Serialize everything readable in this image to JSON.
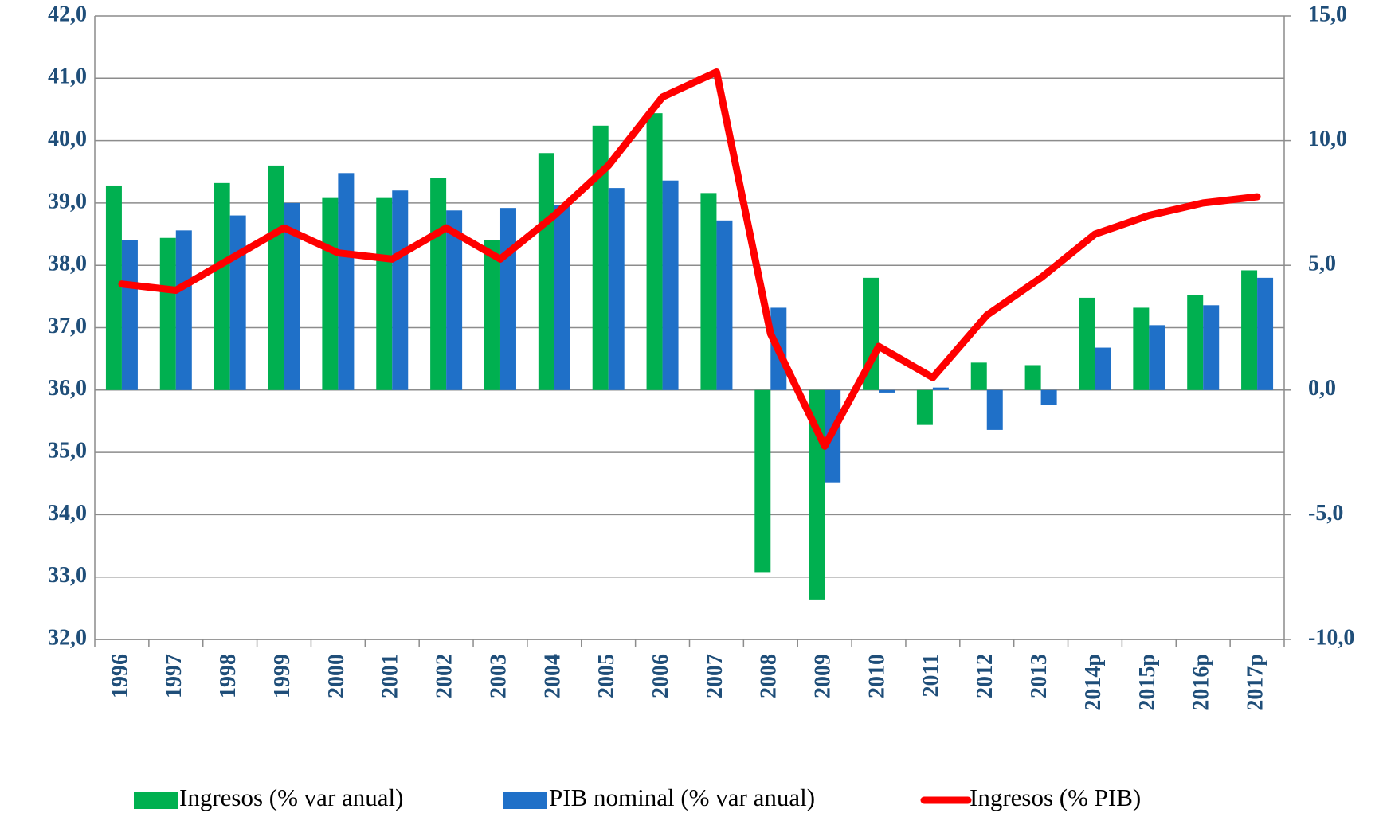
{
  "chart_data": {
    "type": "bar-line",
    "categories": [
      "1996",
      "1997",
      "1998",
      "1999",
      "2000",
      "2001",
      "2002",
      "2003",
      "2004",
      "2005",
      "2006",
      "2007",
      "2008",
      "2009",
      "2010",
      "2011",
      "2012",
      "2013",
      "2014p",
      "2015p",
      "2016p",
      "2017p"
    ],
    "series": [
      {
        "name": "Ingresos (% var anual)",
        "type": "bar",
        "axis": "y2",
        "color": "#00b050",
        "values": [
          8.2,
          6.1,
          8.3,
          9.0,
          7.7,
          7.7,
          8.5,
          6.0,
          9.5,
          10.6,
          11.1,
          7.9,
          -7.3,
          -8.4,
          4.5,
          -1.4,
          1.1,
          1.0,
          3.7,
          3.3,
          3.8,
          4.8
        ]
      },
      {
        "name": "PIB nominal (% var anual)",
        "type": "bar",
        "axis": "y2",
        "color": "#1f70c8",
        "values": [
          6.0,
          6.4,
          7.0,
          7.5,
          8.7,
          8.0,
          7.2,
          7.3,
          7.4,
          8.1,
          8.4,
          6.8,
          3.3,
          -3.7,
          -0.1,
          0.1,
          -1.6,
          -0.6,
          1.7,
          2.6,
          3.4,
          4.5
        ]
      },
      {
        "name": "Ingresos (% PIB)",
        "type": "line",
        "axis": "y",
        "color": "#ff0000",
        "values": [
          37.7,
          37.6,
          38.1,
          38.6,
          38.2,
          38.1,
          38.6,
          38.1,
          38.8,
          39.6,
          40.7,
          41.1,
          36.9,
          35.1,
          36.7,
          36.2,
          37.2,
          37.8,
          38.5,
          38.8,
          39.0,
          39.1
        ]
      }
    ],
    "ylim": [
      32,
      42
    ],
    "yticks": [
      {
        "value": 32,
        "label": "32,0"
      },
      {
        "value": 33,
        "label": "33,0"
      },
      {
        "value": 34,
        "label": "34,0"
      },
      {
        "value": 35,
        "label": "35,0"
      },
      {
        "value": 36,
        "label": "36,0"
      },
      {
        "value": 37,
        "label": "37,0"
      },
      {
        "value": 38,
        "label": "38,0"
      },
      {
        "value": 39,
        "label": "39,0"
      },
      {
        "value": 40,
        "label": "40,0"
      },
      {
        "value": 41,
        "label": "41,0"
      },
      {
        "value": 42,
        "label": "42,0"
      }
    ],
    "y2lim": [
      -10,
      15
    ],
    "y2ticks": [
      {
        "value": -10,
        "label": "-10,0"
      },
      {
        "value": -5,
        "label": "-5,0"
      },
      {
        "value": 0,
        "label": "0,0"
      },
      {
        "value": 5,
        "label": "5,0"
      },
      {
        "value": 10,
        "label": "10,0"
      },
      {
        "value": 15,
        "label": "15,0"
      }
    ],
    "grid": true,
    "legend": "bottom"
  }
}
